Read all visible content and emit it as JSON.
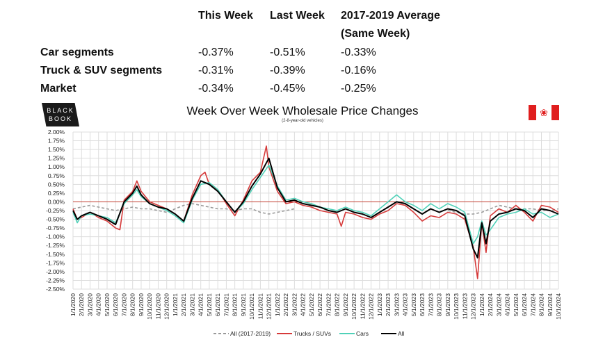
{
  "table": {
    "headers": [
      "This Week",
      "Last Week",
      "2017-2019 Average",
      "(Same Week)"
    ],
    "rows": [
      {
        "label": "Car segments",
        "values": [
          "-0.37%",
          "-0.51%",
          "-0.33%"
        ]
      },
      {
        "label": "Truck & SUV segments",
        "values": [
          "-0.31%",
          "-0.39%",
          "-0.16%"
        ]
      },
      {
        "label": "Market",
        "values": [
          "-0.34%",
          "-0.45%",
          "-0.25%"
        ]
      }
    ]
  },
  "logo": {
    "line1": "BLACK",
    "line2": "BOOK"
  },
  "colors": {
    "trucks": "#d63a3a",
    "cars": "#4fd1b8",
    "all": "#000000",
    "avg": "#999999",
    "zero": "#c0392b"
  },
  "chart_data": {
    "type": "line",
    "title": "Week Over Week Wholesale Price Changes",
    "subtitle": "(2-8-year-old vehicles)",
    "ylim": [
      -2.5,
      2.0
    ],
    "yticks": [
      "2.00%",
      "1.75%",
      "1.50%",
      "1.25%",
      "1.00%",
      "0.75%",
      "0.50%",
      "0.25%",
      "0.00%",
      "-0.25%",
      "-0.50%",
      "-0.75%",
      "-1.00%",
      "-1.25%",
      "-1.50%",
      "-1.75%",
      "-2.00%",
      "-2.25%",
      "-2.50%"
    ],
    "xticks": [
      "1/1/2020",
      "2/1/2020",
      "3/1/2020",
      "4/1/2020",
      "5/1/2020",
      "6/1/2020",
      "7/1/2020",
      "8/1/2020",
      "9/1/2020",
      "10/1/2020",
      "11/1/2020",
      "12/1/2020",
      "1/1/2021",
      "2/1/2021",
      "3/1/2021",
      "4/1/2021",
      "5/1/2021",
      "6/1/2021",
      "7/1/2021",
      "8/1/2021",
      "9/1/2021",
      "10/1/2021",
      "11/1/2021",
      "12/1/2021",
      "1/1/2022",
      "2/1/2022",
      "3/1/2022",
      "4/1/2022",
      "5/1/2022",
      "6/1/2022",
      "7/1/2022",
      "8/1/2022",
      "9/1/2022",
      "10/1/2022",
      "11/1/2022",
      "12/1/2022",
      "1/1/2023",
      "2/1/2023",
      "3/1/2023",
      "4/1/2023",
      "5/1/2023",
      "6/1/2023",
      "7/1/2023",
      "8/1/2023",
      "9/1/2023",
      "10/1/2023",
      "11/1/2023",
      "12/1/2023",
      "1/1/2024",
      "2/1/2024",
      "3/1/2024",
      "4/1/2024",
      "5/1/2024",
      "6/1/2024",
      "7/1/2024",
      "8/1/2024",
      "9/1/2024",
      "10/1/2024"
    ],
    "x_unit": "months since 1/1/2020",
    "series": [
      {
        "name": "All (2017-2019)",
        "style": "dashed",
        "points": [
          [
            0,
            -0.2
          ],
          [
            1,
            -0.15
          ],
          [
            2,
            -0.1
          ],
          [
            3,
            -0.15
          ],
          [
            4,
            -0.2
          ],
          [
            5,
            -0.25
          ],
          [
            6,
            -0.2
          ],
          [
            7,
            -0.15
          ],
          [
            8,
            -0.2
          ],
          [
            9,
            -0.2
          ],
          [
            10,
            -0.25
          ],
          [
            11,
            -0.3
          ],
          [
            12,
            -0.2
          ],
          [
            13,
            -0.1
          ],
          [
            14,
            -0.05
          ],
          [
            15,
            -0.1
          ],
          [
            16,
            -0.15
          ],
          [
            17,
            -0.2
          ],
          [
            18,
            -0.2
          ],
          [
            19,
            -0.25
          ],
          [
            20,
            -0.2
          ],
          [
            21,
            -0.2
          ],
          [
            22,
            -0.3
          ],
          [
            23,
            -0.35
          ],
          [
            24,
            -0.3
          ],
          [
            25,
            -0.25
          ],
          [
            26,
            -0.2
          ]
        ]
      },
      {
        "name": "All (2017-2019)",
        "style": "dashed",
        "points": [
          [
            44,
            -0.25
          ],
          [
            45,
            -0.3
          ],
          [
            46,
            -0.35
          ],
          [
            47,
            -0.35
          ],
          [
            48,
            -0.3
          ],
          [
            49,
            -0.2
          ],
          [
            50,
            -0.1
          ],
          [
            51,
            -0.15
          ],
          [
            52,
            -0.2
          ],
          [
            53,
            -0.2
          ],
          [
            54,
            -0.2
          ],
          [
            55,
            -0.25
          ],
          [
            56,
            -0.25
          ],
          [
            57,
            -0.2
          ]
        ],
        "legend": false
      },
      {
        "name": "Trucks / SUVs",
        "points": [
          [
            0,
            -0.2
          ],
          [
            0.5,
            -0.5
          ],
          [
            1,
            -0.45
          ],
          [
            2,
            -0.3
          ],
          [
            3,
            -0.45
          ],
          [
            4,
            -0.55
          ],
          [
            5,
            -0.75
          ],
          [
            5.5,
            -0.8
          ],
          [
            6,
            0.05
          ],
          [
            7,
            0.3
          ],
          [
            7.5,
            0.6
          ],
          [
            8,
            0.3
          ],
          [
            9,
            0.0
          ],
          [
            10,
            -0.1
          ],
          [
            11,
            -0.2
          ],
          [
            12,
            -0.35
          ],
          [
            13,
            -0.55
          ],
          [
            14,
            0.2
          ],
          [
            15,
            0.75
          ],
          [
            15.5,
            0.85
          ],
          [
            16,
            0.5
          ],
          [
            17,
            0.35
          ],
          [
            18,
            -0.05
          ],
          [
            19,
            -0.4
          ],
          [
            20,
            0.05
          ],
          [
            21,
            0.6
          ],
          [
            22,
            0.85
          ],
          [
            22.7,
            1.6
          ],
          [
            23,
            1.0
          ],
          [
            24,
            0.3
          ],
          [
            25,
            -0.05
          ],
          [
            26,
            0.0
          ],
          [
            27,
            -0.1
          ],
          [
            28,
            -0.15
          ],
          [
            29,
            -0.25
          ],
          [
            30,
            -0.3
          ],
          [
            31,
            -0.35
          ],
          [
            31.5,
            -0.7
          ],
          [
            32,
            -0.3
          ],
          [
            33,
            -0.35
          ],
          [
            34,
            -0.45
          ],
          [
            35,
            -0.5
          ],
          [
            36,
            -0.35
          ],
          [
            37,
            -0.25
          ],
          [
            38,
            -0.05
          ],
          [
            39,
            -0.1
          ],
          [
            40,
            -0.3
          ],
          [
            41,
            -0.55
          ],
          [
            42,
            -0.4
          ],
          [
            43,
            -0.45
          ],
          [
            44,
            -0.3
          ],
          [
            45,
            -0.35
          ],
          [
            46,
            -0.5
          ],
          [
            47,
            -1.3
          ],
          [
            47.5,
            -2.2
          ],
          [
            48,
            -0.6
          ],
          [
            48.5,
            -1.45
          ],
          [
            49,
            -0.4
          ],
          [
            50,
            -0.2
          ],
          [
            51,
            -0.3
          ],
          [
            52,
            -0.1
          ],
          [
            53,
            -0.3
          ],
          [
            54,
            -0.55
          ],
          [
            55,
            -0.1
          ],
          [
            56,
            -0.15
          ],
          [
            57,
            -0.3
          ]
        ]
      },
      {
        "name": "Cars",
        "points": [
          [
            0,
            -0.3
          ],
          [
            0.5,
            -0.6
          ],
          [
            1,
            -0.4
          ],
          [
            2,
            -0.35
          ],
          [
            3,
            -0.4
          ],
          [
            4,
            -0.45
          ],
          [
            5,
            -0.6
          ],
          [
            6,
            -0.05
          ],
          [
            7,
            0.2
          ],
          [
            7.5,
            0.35
          ],
          [
            8,
            0.15
          ],
          [
            9,
            -0.05
          ],
          [
            10,
            -0.15
          ],
          [
            11,
            -0.25
          ],
          [
            12,
            -0.4
          ],
          [
            13,
            -0.6
          ],
          [
            14,
            0.05
          ],
          [
            15,
            0.5
          ],
          [
            16,
            0.55
          ],
          [
            17,
            0.35
          ],
          [
            18,
            0.0
          ],
          [
            19,
            -0.3
          ],
          [
            20,
            -0.05
          ],
          [
            21,
            0.35
          ],
          [
            22,
            0.7
          ],
          [
            23,
            1.05
          ],
          [
            24,
            0.45
          ],
          [
            25,
            0.05
          ],
          [
            26,
            0.1
          ],
          [
            27,
            0.0
          ],
          [
            28,
            -0.05
          ],
          [
            29,
            -0.15
          ],
          [
            30,
            -0.2
          ],
          [
            31,
            -0.25
          ],
          [
            32,
            -0.15
          ],
          [
            33,
            -0.25
          ],
          [
            34,
            -0.3
          ],
          [
            35,
            -0.4
          ],
          [
            36,
            -0.2
          ],
          [
            37,
            0.0
          ],
          [
            38,
            0.2
          ],
          [
            39,
            0.0
          ],
          [
            40,
            -0.1
          ],
          [
            41,
            -0.25
          ],
          [
            42,
            -0.05
          ],
          [
            43,
            -0.2
          ],
          [
            44,
            -0.05
          ],
          [
            45,
            -0.15
          ],
          [
            46,
            -0.3
          ],
          [
            47,
            -1.2
          ],
          [
            47.5,
            -1.0
          ],
          [
            48,
            -0.55
          ],
          [
            48.5,
            -0.95
          ],
          [
            49,
            -0.8
          ],
          [
            50,
            -0.45
          ],
          [
            51,
            -0.35
          ],
          [
            52,
            -0.3
          ],
          [
            53,
            -0.2
          ],
          [
            54,
            -0.35
          ],
          [
            55,
            -0.3
          ],
          [
            56,
            -0.45
          ],
          [
            57,
            -0.35
          ]
        ]
      },
      {
        "name": "All",
        "points": [
          [
            0,
            -0.25
          ],
          [
            0.5,
            -0.5
          ],
          [
            1,
            -0.4
          ],
          [
            2,
            -0.3
          ],
          [
            3,
            -0.4
          ],
          [
            4,
            -0.5
          ],
          [
            5,
            -0.65
          ],
          [
            6,
            0.0
          ],
          [
            7,
            0.25
          ],
          [
            7.5,
            0.45
          ],
          [
            8,
            0.2
          ],
          [
            9,
            -0.05
          ],
          [
            10,
            -0.15
          ],
          [
            11,
            -0.2
          ],
          [
            12,
            -0.35
          ],
          [
            13,
            -0.55
          ],
          [
            14,
            0.1
          ],
          [
            15,
            0.6
          ],
          [
            16,
            0.5
          ],
          [
            17,
            0.3
          ],
          [
            18,
            0.0
          ],
          [
            19,
            -0.3
          ],
          [
            20,
            0.0
          ],
          [
            21,
            0.45
          ],
          [
            22,
            0.8
          ],
          [
            23,
            1.25
          ],
          [
            24,
            0.4
          ],
          [
            25,
            0.0
          ],
          [
            26,
            0.05
          ],
          [
            27,
            -0.05
          ],
          [
            28,
            -0.1
          ],
          [
            29,
            -0.15
          ],
          [
            30,
            -0.25
          ],
          [
            31,
            -0.3
          ],
          [
            32,
            -0.2
          ],
          [
            33,
            -0.3
          ],
          [
            34,
            -0.35
          ],
          [
            35,
            -0.45
          ],
          [
            36,
            -0.3
          ],
          [
            37,
            -0.15
          ],
          [
            38,
            0.0
          ],
          [
            39,
            -0.05
          ],
          [
            40,
            -0.2
          ],
          [
            41,
            -0.35
          ],
          [
            42,
            -0.2
          ],
          [
            43,
            -0.3
          ],
          [
            44,
            -0.2
          ],
          [
            45,
            -0.25
          ],
          [
            46,
            -0.4
          ],
          [
            47,
            -1.35
          ],
          [
            47.5,
            -1.6
          ],
          [
            48,
            -0.6
          ],
          [
            48.5,
            -1.2
          ],
          [
            49,
            -0.55
          ],
          [
            50,
            -0.35
          ],
          [
            51,
            -0.3
          ],
          [
            52,
            -0.2
          ],
          [
            53,
            -0.25
          ],
          [
            54,
            -0.45
          ],
          [
            55,
            -0.2
          ],
          [
            56,
            -0.25
          ],
          [
            57,
            -0.35
          ]
        ]
      }
    ],
    "legend": [
      "All (2017-2019)",
      "Trucks / SUVs",
      "Cars",
      "All"
    ],
    "legend_position": "bottom",
    "grid": true
  }
}
